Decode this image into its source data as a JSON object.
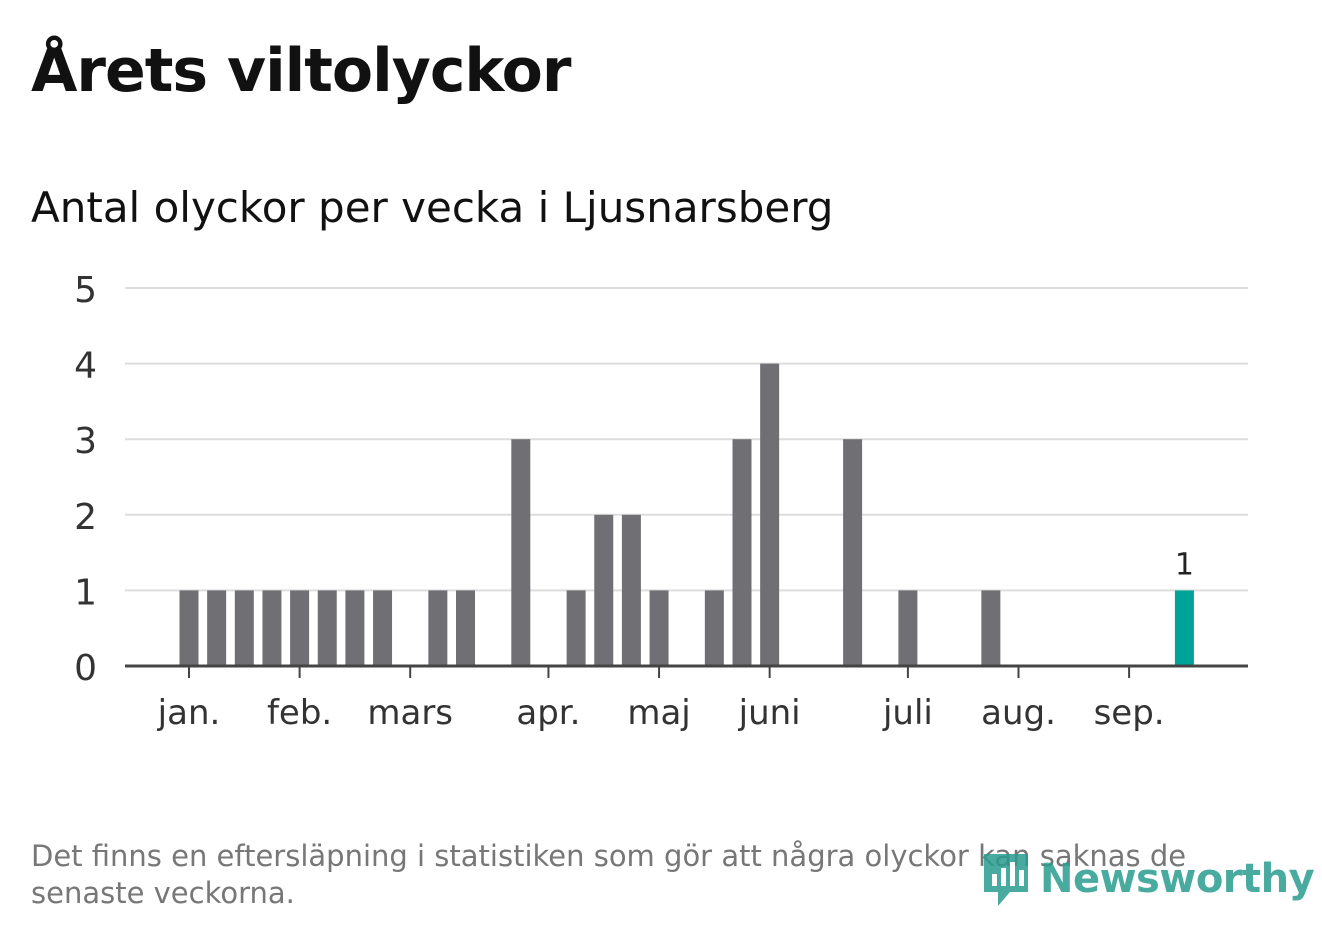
{
  "header": {
    "title": "Årets viltolyckor",
    "subtitle": "Antal olyckor per vecka i Ljusnarsberg"
  },
  "footnote": "Det finns en eftersläpning i statistiken som gör att några olyckor kan saknas de senaste veckorna.",
  "logo": {
    "name": "Newsworthy"
  },
  "colors": {
    "bar": "#707074",
    "highlight": "#00a398",
    "grid": "#dddddd",
    "axis": "#444444"
  },
  "chart_data": {
    "type": "bar",
    "title": "Antal olyckor per vecka i Ljusnarsberg",
    "xlabel": "",
    "ylabel": "",
    "ylim": [
      0,
      5
    ],
    "yticks": [
      "0",
      "1",
      "2",
      "3",
      "4",
      "5"
    ],
    "month_labels": [
      "jan.",
      "feb.",
      "mars",
      "apr.",
      "maj",
      "juni",
      "juli",
      "aug.",
      "sep."
    ],
    "month_label_weeks": [
      1,
      5,
      9,
      14,
      18,
      22,
      27,
      31,
      35
    ],
    "weeks": [
      1,
      2,
      3,
      4,
      5,
      6,
      7,
      8,
      9,
      10,
      11,
      12,
      13,
      14,
      15,
      16,
      17,
      18,
      19,
      20,
      21,
      22,
      23,
      24,
      25,
      26,
      27,
      28,
      29,
      30,
      31,
      32,
      33,
      34,
      35,
      36,
      37
    ],
    "values": [
      1,
      1,
      1,
      1,
      1,
      1,
      1,
      1,
      0,
      1,
      1,
      0,
      3,
      0,
      1,
      2,
      2,
      1,
      0,
      1,
      3,
      4,
      0,
      0,
      3,
      0,
      1,
      0,
      0,
      1,
      0,
      0,
      0,
      0,
      0,
      0,
      1
    ],
    "highlight_index": 36,
    "highlight_label": "1",
    "grid": true,
    "legend": "none"
  }
}
